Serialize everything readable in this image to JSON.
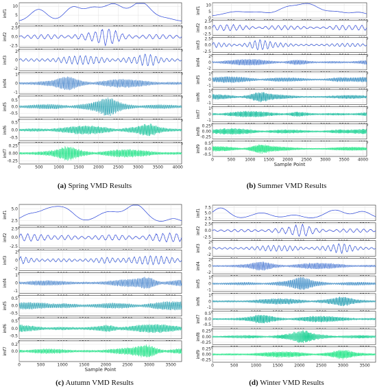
{
  "captions": [
    {
      "id": "a",
      "letter": "(a)",
      "text": "Spring VMD Results"
    },
    {
      "id": "b",
      "letter": "(b)",
      "text": "Summer VMD Results"
    },
    {
      "id": "c",
      "letter": "(c)",
      "text": "Autumn VMD Results"
    },
    {
      "id": "d",
      "letter": "(d)",
      "text": "Winter VMD Results"
    }
  ],
  "colors": {
    "imf_blue": "#2541d8",
    "imf_mid": "#1f8fb5",
    "imf_teal": "#14b39a",
    "imf_green": "#26e8a0",
    "grid": "#d9d9d9"
  },
  "chart_data": [
    {
      "id": "a",
      "type": "line",
      "title": "",
      "xlabel": "Sample Point",
      "xlim": [
        0,
        4100
      ],
      "xticks": [
        0,
        500,
        1000,
        1500,
        2000,
        2500,
        3000,
        3500,
        4000
      ],
      "show_xlabel": false,
      "grid": true,
      "series": [
        {
          "name": "imf1",
          "yticks": [
            "0",
            "5",
            "10"
          ],
          "ylim": [
            0,
            12
          ],
          "kind": "trend",
          "color": "#2541d8"
        },
        {
          "name": "imf2",
          "yticks": [
            "-2.5",
            "0.0",
            "2.5"
          ],
          "ylim": [
            -3,
            3
          ],
          "kind": "osc",
          "color": "#2d46d9"
        },
        {
          "name": "imf3",
          "yticks": [
            "-2",
            "0",
            "2"
          ],
          "ylim": [
            -2.5,
            2.5
          ],
          "kind": "osc",
          "color": "#2e55d4"
        },
        {
          "name": "imf4",
          "yticks": [
            "-1",
            "0",
            "1"
          ],
          "ylim": [
            -1.2,
            1.2
          ],
          "kind": "dense",
          "color": "#2c74c6"
        },
        {
          "name": "imf5",
          "yticks": [
            "-0.5",
            "0.0",
            "0.5"
          ],
          "ylim": [
            -0.8,
            0.8
          ],
          "kind": "dense",
          "color": "#1f9fb0"
        },
        {
          "name": "imf6",
          "yticks": [
            "-0.5",
            "0.0",
            "0.5"
          ],
          "ylim": [
            -0.7,
            0.7
          ],
          "kind": "dense",
          "color": "#16c49a"
        },
        {
          "name": "imf7",
          "yticks": [
            "-0.25",
            "0.00",
            "0.25"
          ],
          "ylim": [
            -0.35,
            0.35
          ],
          "kind": "dense",
          "color": "#28e58c"
        }
      ]
    },
    {
      "id": "b",
      "type": "line",
      "title": "",
      "xlabel": "Sample Point",
      "xlim": [
        0,
        4100
      ],
      "xticks": [
        0,
        500,
        1000,
        1500,
        2000,
        2500,
        3000,
        3500,
        4000
      ],
      "show_xlabel": true,
      "grid": true,
      "series": [
        {
          "name": "imf1",
          "yticks": [
            "0",
            "5",
            "10"
          ],
          "ylim": [
            0,
            12
          ],
          "kind": "trend",
          "color": "#2541d8"
        },
        {
          "name": "imf2",
          "yticks": [
            "-2.5",
            "0.0",
            "2.5"
          ],
          "ylim": [
            -3,
            3
          ],
          "kind": "osc",
          "color": "#2b44d8"
        },
        {
          "name": "imf3",
          "yticks": [
            "-2.5",
            "0.0",
            "2.5"
          ],
          "ylim": [
            -3,
            3
          ],
          "kind": "osc",
          "color": "#2b50d6"
        },
        {
          "name": "imf4",
          "yticks": [
            "-2",
            "0",
            "2"
          ],
          "ylim": [
            -2.5,
            2.5
          ],
          "kind": "dense",
          "color": "#2b66cc"
        },
        {
          "name": "imf5",
          "yticks": [
            "-1",
            "0",
            "1"
          ],
          "ylim": [
            -1.3,
            1.3
          ],
          "kind": "dense",
          "color": "#2683bf"
        },
        {
          "name": "imf6",
          "yticks": [
            "-1",
            "0",
            "1"
          ],
          "ylim": [
            -1.3,
            1.3
          ],
          "kind": "dense",
          "color": "#1da2ae"
        },
        {
          "name": "imf7",
          "yticks": [
            "-1",
            "0",
            "1"
          ],
          "ylim": [
            -1.3,
            1.3
          ],
          "kind": "dense",
          "color": "#17bf9f"
        },
        {
          "name": "imf8",
          "yticks": [
            "-0.25",
            "0.00",
            "0.25"
          ],
          "ylim": [
            -0.35,
            0.35
          ],
          "kind": "dense",
          "color": "#1fd597"
        },
        {
          "name": "imf9",
          "yticks": [
            "-0.5",
            "0.0",
            "0.5"
          ],
          "ylim": [
            -0.7,
            0.7
          ],
          "kind": "dense",
          "color": "#2ae88c"
        }
      ]
    },
    {
      "id": "c",
      "type": "line",
      "title": "",
      "xlabel": "Sample Point",
      "xlim": [
        0,
        3750
      ],
      "xticks": [
        0,
        500,
        1000,
        1500,
        2000,
        2500,
        3000,
        3500
      ],
      "show_xlabel": true,
      "grid": true,
      "series": [
        {
          "name": "imf1",
          "yticks": [
            "2.5",
            "5.0"
          ],
          "ylim": [
            1.5,
            6
          ],
          "kind": "trend",
          "color": "#2541d8"
        },
        {
          "name": "imf2",
          "yticks": [
            "-2.5",
            "0.0",
            "2.5"
          ],
          "ylim": [
            -3,
            3
          ],
          "kind": "osc",
          "color": "#2b44d8"
        },
        {
          "name": "imf3",
          "yticks": [
            "-2",
            "0",
            "2"
          ],
          "ylim": [
            -2.5,
            2.5
          ],
          "kind": "osc",
          "color": "#2d52d5"
        },
        {
          "name": "imf4",
          "yticks": [
            "-1",
            "0",
            "1"
          ],
          "ylim": [
            -1.3,
            1.3
          ],
          "kind": "dense",
          "color": "#2a72c7"
        },
        {
          "name": "imf5",
          "yticks": [
            "-0.5",
            "0.0",
            "0.5"
          ],
          "ylim": [
            -0.7,
            0.7
          ],
          "kind": "dense",
          "color": "#1e9db1"
        },
        {
          "name": "imf6",
          "yticks": [
            "-0.5",
            "0.0",
            "0.5"
          ],
          "ylim": [
            -0.7,
            0.7
          ],
          "kind": "dense",
          "color": "#17c49c"
        },
        {
          "name": "imf7",
          "yticks": [
            "0.0",
            "0.2"
          ],
          "ylim": [
            -0.3,
            0.3
          ],
          "kind": "dense",
          "color": "#28e58c"
        }
      ]
    },
    {
      "id": "d",
      "type": "line",
      "title": "",
      "xlabel": "Sample Point",
      "xlim": [
        0,
        3750
      ],
      "xticks": [
        0,
        500,
        1000,
        1500,
        2000,
        2500,
        3000,
        3500
      ],
      "show_xlabel": false,
      "grid": true,
      "series": [
        {
          "name": "imf1",
          "yticks": [
            "2.5",
            "5.0",
            "7.5"
          ],
          "ylim": [
            1.5,
            8.5
          ],
          "kind": "trend",
          "color": "#2541d8"
        },
        {
          "name": "imf2",
          "yticks": [
            "-2.5",
            "0.0",
            "2.5"
          ],
          "ylim": [
            -3,
            3
          ],
          "kind": "osc",
          "color": "#2b44d8"
        },
        {
          "name": "imf3",
          "yticks": [
            "-2",
            "0",
            "2"
          ],
          "ylim": [
            -2.5,
            2.5
          ],
          "kind": "osc",
          "color": "#2c4fd6"
        },
        {
          "name": "imf4",
          "yticks": [
            "-2",
            "0",
            "2"
          ],
          "ylim": [
            -2.5,
            2.5
          ],
          "kind": "dense",
          "color": "#2b62ce"
        },
        {
          "name": "imf5",
          "yticks": [
            "-1",
            "0",
            "1"
          ],
          "ylim": [
            -1.3,
            1.3
          ],
          "kind": "dense",
          "color": "#267fc1"
        },
        {
          "name": "imf6",
          "yticks": [
            "-1",
            "0",
            "1"
          ],
          "ylim": [
            -1.3,
            1.3
          ],
          "kind": "dense",
          "color": "#1e9cb1"
        },
        {
          "name": "imf7",
          "yticks": [
            "-0.5",
            "0.0",
            "0.5"
          ],
          "ylim": [
            -0.7,
            0.7
          ],
          "kind": "dense",
          "color": "#17b9a2"
        },
        {
          "name": "imf8",
          "yticks": [
            "-0.25",
            "0.00",
            "0.25"
          ],
          "ylim": [
            -0.35,
            0.35
          ],
          "kind": "dense",
          "color": "#1ed295"
        },
        {
          "name": "imf9",
          "yticks": [
            "-0.25",
            "0.00",
            "0.25"
          ],
          "ylim": [
            -0.35,
            0.35
          ],
          "kind": "dense",
          "color": "#2ae88c"
        }
      ]
    }
  ]
}
